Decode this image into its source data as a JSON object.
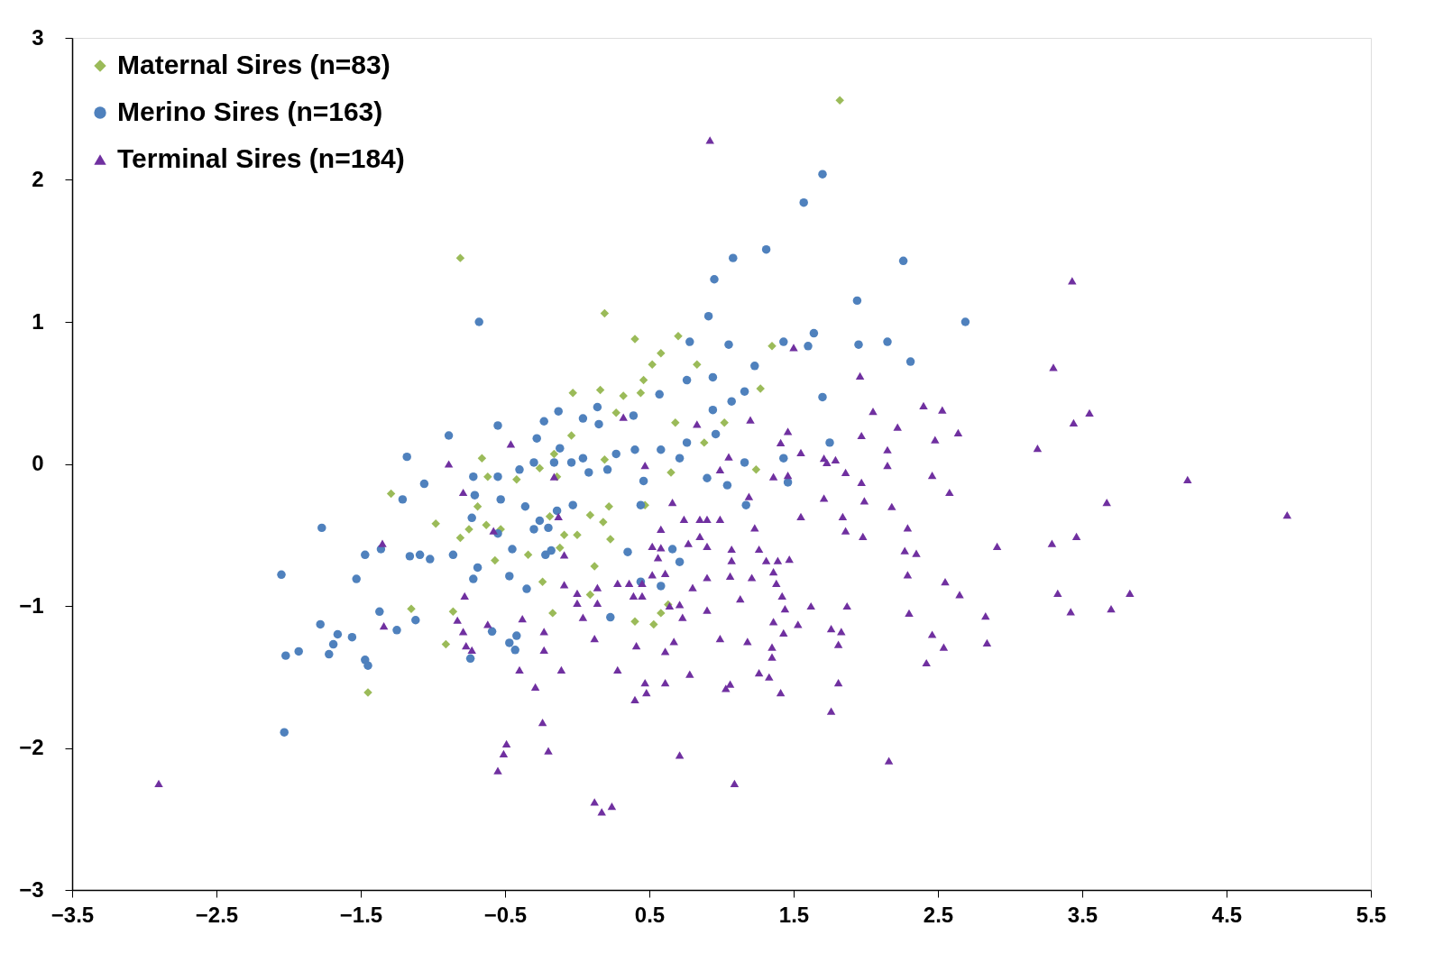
{
  "chart_data": {
    "type": "scatter",
    "xlim": [
      -3.5,
      5.5
    ],
    "xticks": [
      -3.5,
      -2.5,
      -1.5,
      -0.5,
      0.5,
      1.5,
      2.5,
      3.5,
      4.5,
      5.5
    ],
    "ylim": [
      -3,
      3
    ],
    "yticks": [
      -3,
      -2,
      -1,
      0,
      1,
      2,
      3
    ],
    "grid": false,
    "legend": "top left",
    "series": [
      {
        "name": "Maternal Sires (n=83)",
        "color": "#9bbb59",
        "marker": "diamond",
        "x": [
          1.82,
          -0.81,
          0.19,
          0.4,
          0.7,
          0.58,
          0.52,
          0.46,
          0.44,
          0.83,
          1.35,
          1.27,
          -0.03,
          0.16,
          0.32,
          0.27,
          0.68,
          1.02,
          -0.04,
          0.88,
          1.24,
          -0.66,
          -0.26,
          -0.16,
          -0.14,
          -0.62,
          -0.42,
          0.19,
          0.65,
          -1.29,
          -0.69,
          0.22,
          0.47,
          -0.98,
          -0.63,
          -0.75,
          -0.81,
          -0.53,
          -0.57,
          -0.19,
          -0.09,
          0.0,
          0.18,
          0.23,
          0.09,
          -0.34,
          -0.12,
          0.12,
          -0.24,
          0.09,
          -1.15,
          -0.86,
          -0.91,
          -0.17,
          0.4,
          0.58,
          0.63,
          0.53,
          -1.45
        ],
        "values": [
          2.56,
          1.45,
          1.06,
          0.88,
          0.9,
          0.78,
          0.7,
          0.59,
          0.5,
          0.7,
          0.83,
          0.53,
          0.5,
          0.52,
          0.48,
          0.36,
          0.29,
          0.29,
          0.2,
          0.15,
          -0.04,
          0.04,
          -0.03,
          0.07,
          -0.09,
          -0.09,
          -0.11,
          0.03,
          -0.06,
          -0.21,
          -0.3,
          -0.3,
          -0.29,
          -0.42,
          -0.43,
          -0.46,
          -0.52,
          -0.46,
          -0.68,
          -0.37,
          -0.5,
          -0.5,
          -0.41,
          -0.53,
          -0.36,
          -0.64,
          -0.59,
          -0.72,
          -0.83,
          -0.92,
          -1.02,
          -1.04,
          -1.27,
          -1.05,
          -1.11,
          -1.05,
          -0.99,
          -1.13,
          -1.61
        ]
      },
      {
        "name": "Merino Sires (n=163)",
        "color": "#4f81bd",
        "marker": "circle",
        "x": [
          1.7,
          1.57,
          1.31,
          2.26,
          1.08,
          0.95,
          -0.68,
          2.69,
          1.94,
          0.91,
          1.64,
          2.15,
          1.95,
          1.6,
          1.43,
          1.05,
          0.78,
          2.31,
          1.23,
          0.94,
          0.76,
          1.7,
          1.07,
          0.57,
          0.94,
          0.39,
          1.16,
          0.14,
          -0.13,
          0.04,
          -0.23,
          -0.55,
          0.96,
          1.75,
          0.15,
          -0.89,
          -0.28,
          -0.12,
          -1.18,
          0.4,
          0.58,
          0.76,
          0.27,
          0.04,
          -0.16,
          -0.3,
          -0.4,
          -0.55,
          -0.72,
          0.21,
          0.46,
          0.08,
          -0.04,
          0.71,
          1.16,
          1.43,
          1.46,
          0.9,
          1.04,
          -1.06,
          -1.21,
          -0.71,
          -0.53,
          -0.36,
          -0.26,
          -0.2,
          -0.03,
          0.44,
          1.17,
          -1.77,
          -0.73,
          -0.55,
          -0.3,
          -0.14,
          -0.45,
          -0.22,
          -0.18,
          -1.47,
          -1.36,
          -1.16,
          -1.09,
          -1.02,
          -0.86,
          -0.69,
          0.35,
          0.66,
          -0.47,
          -0.35,
          -0.72,
          -1.53,
          0.44,
          -1.37,
          -2.05,
          -1.78,
          -1.66,
          -1.56,
          -1.69,
          -1.25,
          -1.12,
          -0.59,
          -0.47,
          -0.42,
          -0.43,
          -0.74,
          -1.47,
          -1.45,
          -1.72,
          -1.93,
          -2.02,
          -2.03,
          0.23,
          0.71,
          0.58
        ],
        "values": [
          2.04,
          1.84,
          1.51,
          1.43,
          1.45,
          1.3,
          1.0,
          1.0,
          1.15,
          1.04,
          0.92,
          0.86,
          0.84,
          0.83,
          0.86,
          0.84,
          0.86,
          0.72,
          0.69,
          0.61,
          0.59,
          0.47,
          0.44,
          0.49,
          0.38,
          0.34,
          0.51,
          0.4,
          0.37,
          0.32,
          0.3,
          0.27,
          0.21,
          0.15,
          0.28,
          0.2,
          0.18,
          0.11,
          0.05,
          0.1,
          0.1,
          0.15,
          0.07,
          0.04,
          0.01,
          0.01,
          -0.04,
          -0.09,
          -0.09,
          -0.04,
          -0.12,
          -0.06,
          0.01,
          0.04,
          0.01,
          0.04,
          -0.13,
          -0.1,
          -0.15,
          -0.14,
          -0.25,
          -0.22,
          -0.25,
          -0.3,
          -0.4,
          -0.45,
          -0.29,
          -0.29,
          -0.29,
          -0.45,
          -0.38,
          -0.49,
          -0.46,
          -0.33,
          -0.6,
          -0.64,
          -0.61,
          -0.64,
          -0.6,
          -0.65,
          -0.64,
          -0.67,
          -0.64,
          -0.73,
          -0.62,
          -0.6,
          -0.79,
          -0.88,
          -0.81,
          -0.81,
          -0.83,
          -1.04,
          -0.78,
          -1.13,
          -1.2,
          -1.22,
          -1.27,
          -1.17,
          -1.1,
          -1.18,
          -1.26,
          -1.21,
          -1.31,
          -1.37,
          -1.38,
          -1.42,
          -1.34,
          -1.32,
          -1.35,
          -1.89,
          -1.08,
          -0.69,
          -0.86
        ]
      },
      {
        "name": "Terminal Sires (n=184)",
        "color": "#7030a0",
        "marker": "triangle",
        "x": [
          0.92,
          -2.9,
          3.43,
          3.3,
          3.55,
          3.44,
          3.19,
          4.23,
          4.92,
          3.67,
          3.46,
          3.29,
          2.91,
          3.33,
          3.42,
          3.7,
          3.83,
          2.83,
          2.84,
          2.65,
          2.64,
          2.53,
          2.4,
          2.48,
          2.46,
          2.58,
          2.22,
          2.05,
          2.15,
          2.15,
          1.96,
          1.97,
          1.97,
          1.99,
          1.98,
          2.18,
          2.29,
          2.27,
          2.35,
          2.29,
          2.3,
          2.55,
          2.46,
          2.54,
          2.42,
          2.16,
          1.5,
          1.2,
          1.41,
          1.46,
          1.55,
          1.71,
          1.79,
          1.73,
          1.86,
          1.71,
          1.55,
          1.84,
          1.86,
          1.36,
          1.46,
          1.05,
          0.99,
          1.19,
          1.23,
          0.83,
          0.32,
          0.47,
          0.66,
          0.58,
          0.74,
          0.85,
          0.9,
          0.99,
          0.85,
          0.77,
          0.9,
          1.07,
          1.26,
          1.31,
          1.39,
          1.47,
          1.36,
          1.21,
          1.38,
          1.42,
          1.44,
          1.62,
          1.36,
          1.53,
          1.43,
          1.35,
          1.35,
          1.18,
          1.26,
          1.33,
          1.41,
          1.83,
          1.76,
          1.81,
          1.87,
          1.81,
          1.76,
          1.07,
          1.06,
          0.9,
          0.8,
          0.9,
          1.13,
          0.99,
          1.06,
          1.03,
          1.09,
          0.78,
          0.71,
          0.71,
          0.73,
          0.64,
          0.67,
          0.61,
          0.61,
          0.47,
          0.48,
          0.4,
          0.41,
          0.39,
          0.45,
          0.45,
          0.36,
          0.52,
          0.56,
          0.52,
          0.58,
          0.61,
          0.28,
          0.28,
          0.14,
          0.12,
          0.0,
          0.04,
          0.0,
          -0.09,
          -0.09,
          -0.11,
          -0.2,
          -0.24,
          -0.16,
          -0.13,
          -0.23,
          -0.23,
          -0.29,
          -0.38,
          -0.4,
          -0.49,
          -0.51,
          -0.55,
          -0.62,
          -0.58,
          -0.46,
          -0.79,
          -0.89,
          -0.78,
          -0.83,
          -0.79,
          -0.77,
          -0.73,
          -1.35,
          -1.34,
          0.12,
          0.17,
          0.24,
          0.14
        ],
        "values": [
          2.28,
          -2.25,
          1.29,
          0.68,
          0.36,
          0.29,
          0.11,
          -0.11,
          -0.36,
          -0.27,
          -0.51,
          -0.56,
          -0.58,
          -0.91,
          -1.04,
          -1.02,
          -0.91,
          -1.07,
          -1.26,
          -0.92,
          0.22,
          0.38,
          0.41,
          0.17,
          -0.08,
          -0.2,
          0.26,
          0.37,
          0.1,
          -0.01,
          0.62,
          0.2,
          -0.13,
          -0.26,
          -0.51,
          -0.3,
          -0.45,
          -0.61,
          -0.63,
          -0.78,
          -1.05,
          -0.83,
          -1.2,
          -1.29,
          -1.4,
          -2.09,
          0.82,
          0.31,
          0.15,
          0.23,
          0.08,
          0.04,
          0.03,
          0.01,
          -0.06,
          -0.24,
          -0.37,
          -0.37,
          -0.47,
          -0.09,
          -0.08,
          0.05,
          -0.04,
          -0.23,
          -0.45,
          0.28,
          0.33,
          -0.01,
          -0.27,
          -0.46,
          -0.39,
          -0.39,
          -0.39,
          -0.39,
          -0.51,
          -0.56,
          -0.58,
          -0.6,
          -0.6,
          -0.68,
          -0.68,
          -0.67,
          -0.76,
          -0.8,
          -0.84,
          -0.93,
          -1.02,
          -1.0,
          -1.11,
          -1.13,
          -1.19,
          -1.29,
          -1.36,
          -1.25,
          -1.47,
          -1.5,
          -1.61,
          -1.18,
          -1.16,
          -1.27,
          -1.0,
          -1.54,
          -1.74,
          -0.68,
          -0.79,
          -0.8,
          -0.87,
          -1.03,
          -0.95,
          -1.23,
          -1.55,
          -1.58,
          -2.25,
          -1.48,
          -2.05,
          -0.99,
          -1.08,
          -1.0,
          -1.25,
          -1.32,
          -1.54,
          -1.54,
          -1.61,
          -1.66,
          -1.28,
          -0.93,
          -0.84,
          -0.93,
          -0.84,
          -0.78,
          -0.66,
          -0.58,
          -0.59,
          -0.77,
          -1.45,
          -0.84,
          -0.87,
          -1.23,
          -0.91,
          -1.08,
          -0.98,
          -0.85,
          -0.64,
          -1.45,
          -2.02,
          -1.82,
          -0.09,
          -0.37,
          -1.18,
          -1.31,
          -1.57,
          -1.09,
          -1.45,
          -1.97,
          -2.04,
          -2.16,
          -1.13,
          -0.47,
          0.14,
          -0.2,
          0.0,
          -0.93,
          -1.1,
          -1.18,
          -1.28,
          -1.31,
          -0.56,
          -1.14,
          -2.38,
          -2.45,
          -2.41,
          -0.98
        ]
      }
    ]
  }
}
